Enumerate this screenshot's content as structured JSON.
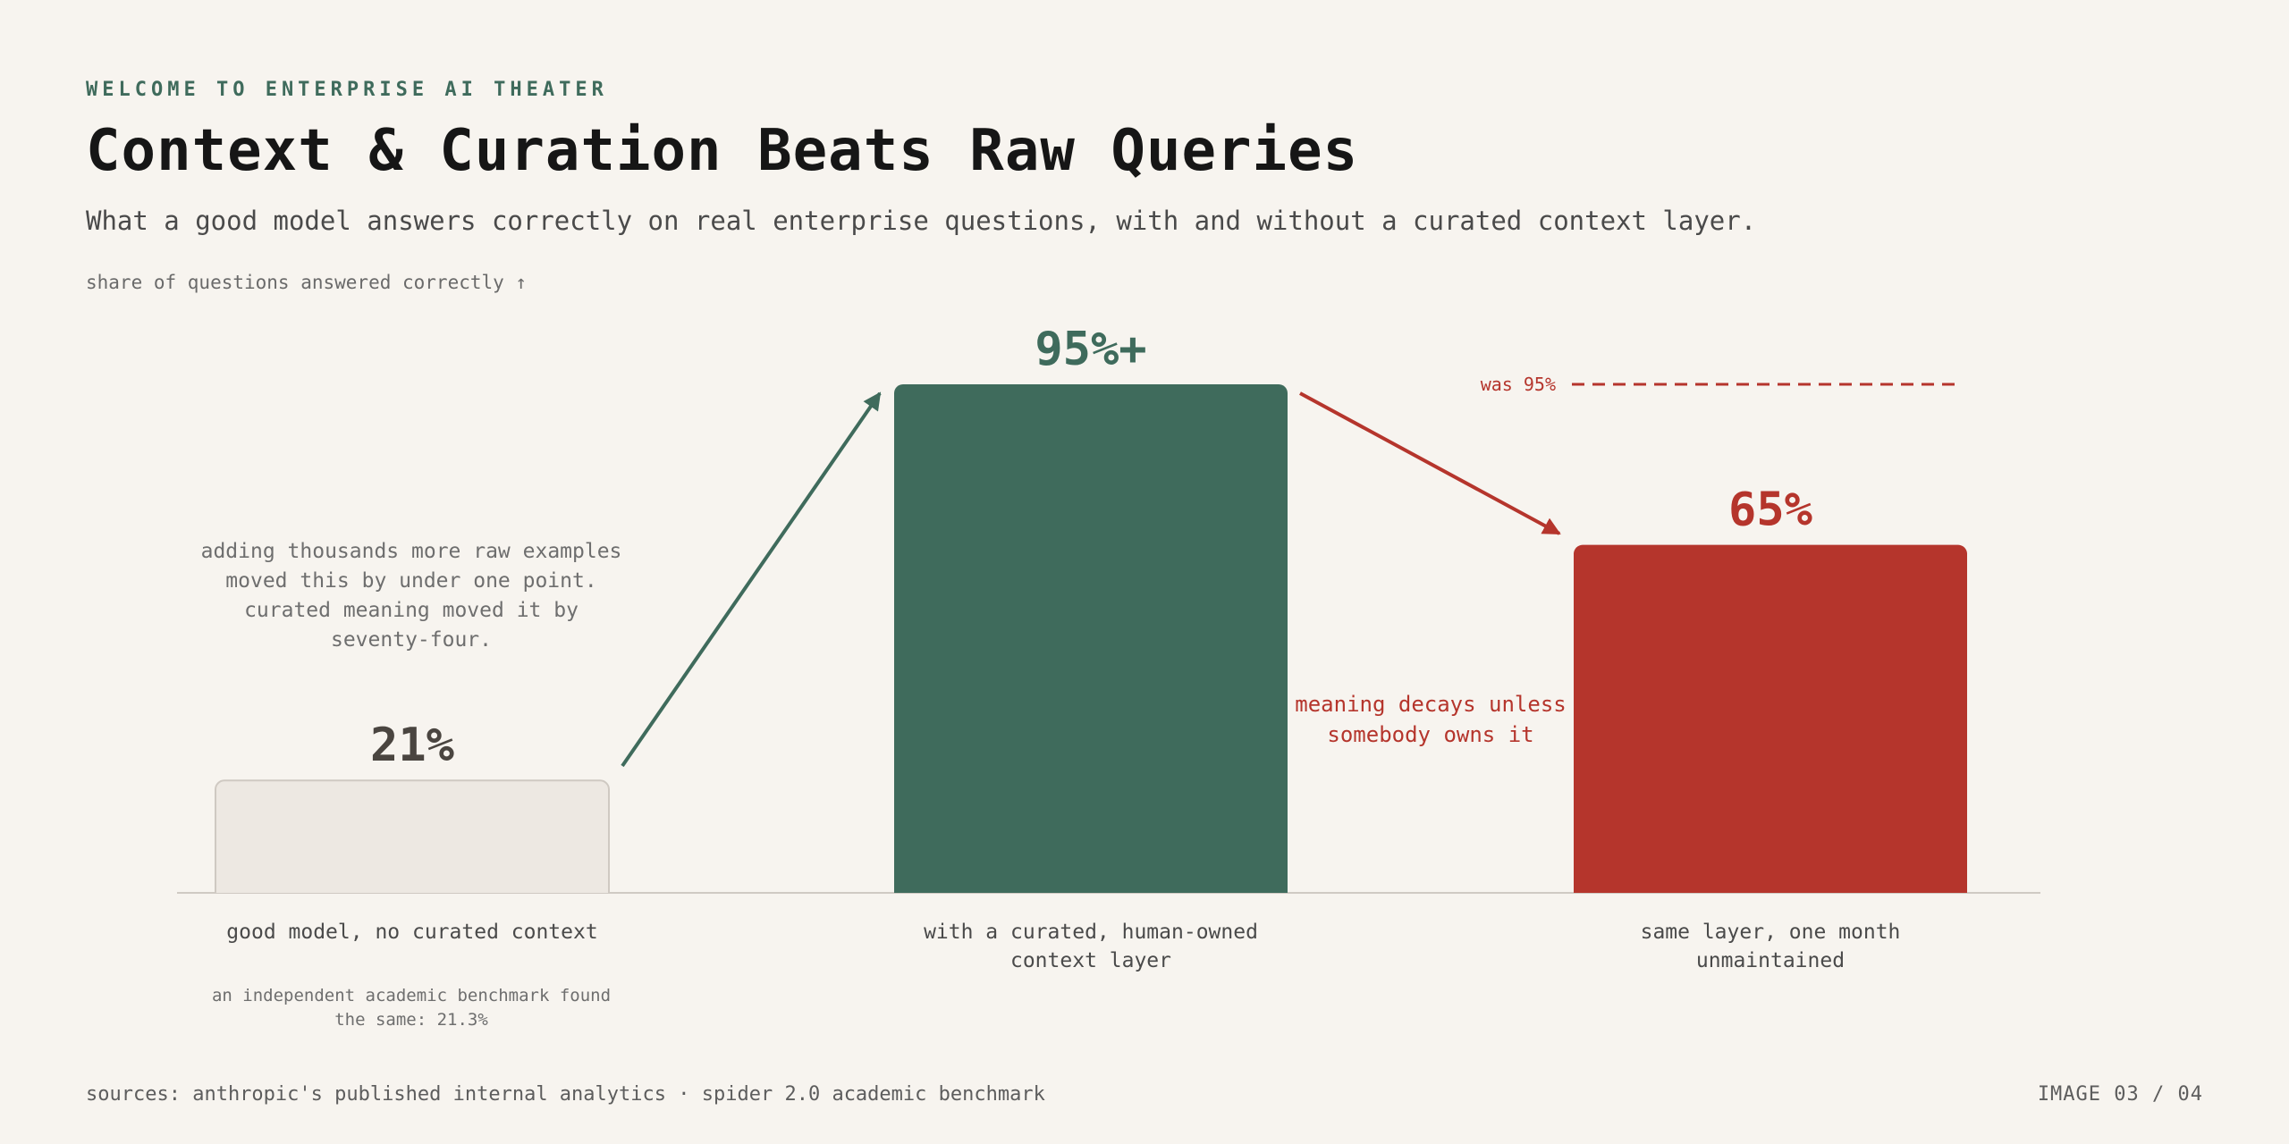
{
  "header": {
    "eyebrow": "WELCOME TO ENTERPRISE AI THEATER",
    "title": "Context & Curation Beats Raw Queries",
    "subtitle": "What a good model answers correctly on real enterprise questions, with and without a curated context layer."
  },
  "chart_data": {
    "type": "bar",
    "ylabel": "share of questions answered correctly ↑",
    "ylim": [
      0,
      100
    ],
    "grid": false,
    "categories": [
      "good model, no curated context",
      "with a curated, human-owned context layer",
      "same layer, one month unmaintained"
    ],
    "category_lines": [
      [
        "good model, no curated context"
      ],
      [
        "with a curated, human-owned",
        "context layer"
      ],
      [
        "same layer, one month",
        "unmaintained"
      ]
    ],
    "values": [
      21,
      95,
      65
    ],
    "value_labels": [
      "21%",
      "95%+",
      "65%"
    ],
    "bar_colors": [
      "#ede8e2",
      "#3f6b5c",
      "#b5352c"
    ],
    "label_colors": [
      "#4a4540",
      "#3f6b5c",
      "#b5352c"
    ],
    "reference": {
      "label": "was 95%",
      "value": 95,
      "color": "#b5352c"
    },
    "annotations": {
      "left_note": [
        "adding thousands more raw examples",
        "moved this by under one point.",
        "curated meaning moved it by",
        "seventy-four."
      ],
      "benchmark_note": [
        "an independent academic benchmark found",
        "the same: 21.3%"
      ],
      "decay_note": [
        "meaning decays unless",
        "somebody owns it"
      ]
    },
    "colors": {
      "up_arrow": "#3f6b5c",
      "down_arrow": "#b5352c",
      "muted_text": "#6e6e6e",
      "category_text": "#4a4a4a"
    }
  },
  "footer": {
    "sources": "sources: anthropic's published internal analytics · spider 2.0 academic benchmark",
    "page": "IMAGE 03 / 04"
  }
}
